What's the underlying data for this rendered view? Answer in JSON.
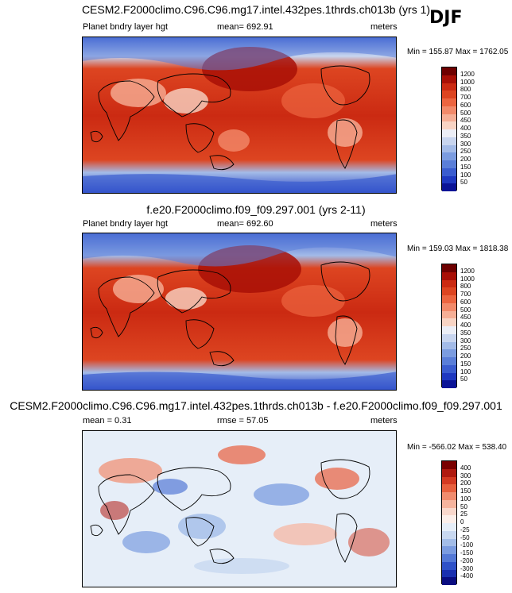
{
  "season": "DJF",
  "panels": [
    {
      "id": "top",
      "title": "CESM2.F2000climo.C96.C96.mg17.intel.432pes.1thrds.ch013b (yrs 1)",
      "left_label": "Planet bndry layer hgt",
      "center_label": "mean= 692.91",
      "units": "meters",
      "minmax": "Min = 155.87 Max = 1762.05",
      "colorbar": {
        "labels": [
          "1200",
          "1000",
          "800",
          "700",
          "600",
          "500",
          "450",
          "400",
          "350",
          "300",
          "250",
          "200",
          "150",
          "100",
          "50"
        ],
        "colors": [
          "#6e0000",
          "#a80f06",
          "#cb2a12",
          "#dd4521",
          "#ec6540",
          "#f28a6a",
          "#f6af96",
          "#f8d4c4",
          "#eceef6",
          "#c8d5ef",
          "#a3bbe8",
          "#7b9ce0",
          "#5a7ed8",
          "#3a5ccf",
          "#1e38c0",
          "#0a1396"
        ]
      }
    },
    {
      "id": "middle",
      "title": "f.e20.F2000climo.f09_f09.297.001 (yrs 2-11)",
      "left_label": "Planet bndry layer hgt",
      "center_label": "mean= 692.60",
      "units": "meters",
      "minmax": "Min = 159.03 Max = 1818.38",
      "colorbar": {
        "labels": [
          "1200",
          "1000",
          "800",
          "700",
          "600",
          "500",
          "450",
          "400",
          "350",
          "300",
          "250",
          "200",
          "150",
          "100",
          "50"
        ],
        "colors": [
          "#6e0000",
          "#a80f06",
          "#cb2a12",
          "#dd4521",
          "#ec6540",
          "#f28a6a",
          "#f6af96",
          "#f8d4c4",
          "#eceef6",
          "#c8d5ef",
          "#a3bbe8",
          "#7b9ce0",
          "#5a7ed8",
          "#3a5ccf",
          "#1e38c0",
          "#0a1396"
        ]
      }
    },
    {
      "id": "bottom",
      "title": "CESM2.F2000climo.C96.C96.mg17.intel.432pes.1thrds.ch013b - f.e20.F2000climo.f09_f09.297.001",
      "left_label": "mean =   0.31",
      "center_label": "rmse =  57.05",
      "units": "meters",
      "minmax": "Min = -566.02 Max = 538.40",
      "colorbar": {
        "labels": [
          "400",
          "300",
          "200",
          "150",
          "100",
          "50",
          "25",
          "0",
          "-25",
          "-50",
          "-100",
          "-150",
          "-200",
          "-300",
          "-400"
        ],
        "colors": [
          "#7a0000",
          "#b01a10",
          "#d43a22",
          "#e8603e",
          "#f18c6e",
          "#f6b49e",
          "#f9d8cc",
          "#fcefea",
          "#e6eef8",
          "#c8d8f0",
          "#a3bde8",
          "#7b9ce0",
          "#5479d6",
          "#2f52c8",
          "#1a30b0",
          "#0a0d80"
        ]
      }
    }
  ]
}
